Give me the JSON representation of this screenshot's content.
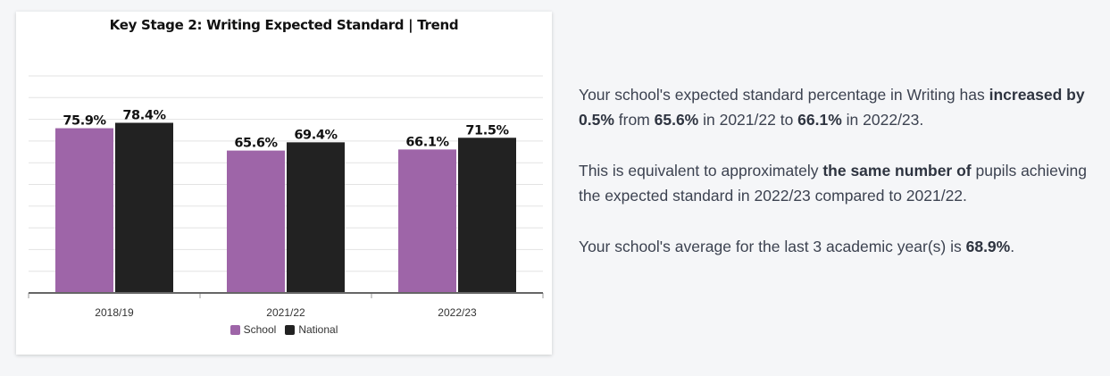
{
  "chart_data": {
    "type": "bar",
    "title": "Key Stage 2: Writing Expected Standard | Trend",
    "categories": [
      "2018/19",
      "2021/22",
      "2022/23"
    ],
    "series": [
      {
        "name": "School",
        "values": [
          75.9,
          65.6,
          66.1
        ],
        "labels": [
          "75.9%",
          "65.6%",
          "66.1%"
        ],
        "color": "#9e65a8"
      },
      {
        "name": "National",
        "values": [
          78.4,
          69.4,
          71.5
        ],
        "labels": [
          "78.4%",
          "69.4%",
          "71.5%"
        ],
        "color": "#222222"
      }
    ],
    "ylim": [
      0,
      100
    ],
    "grid": true,
    "legend_position": "bottom-center"
  },
  "summary": {
    "p1": {
      "t1": "Your school's expected standard percentage in Writing has ",
      "b1": "increased by 0.5%",
      "t2": " from ",
      "b2": "65.6%",
      "t3": " in 2021/22 to ",
      "b3": "66.1%",
      "t4": " in 2022/23."
    },
    "p2": {
      "t1": "This is equivalent to approximately ",
      "b1": "the same number of",
      "t2": " pupils achieving the expected standard in 2022/23 compared to 2021/22."
    },
    "p3": {
      "t1": "Your school's average for the last 3 academic year(s) is ",
      "b1": "68.9%",
      "t2": "."
    }
  }
}
